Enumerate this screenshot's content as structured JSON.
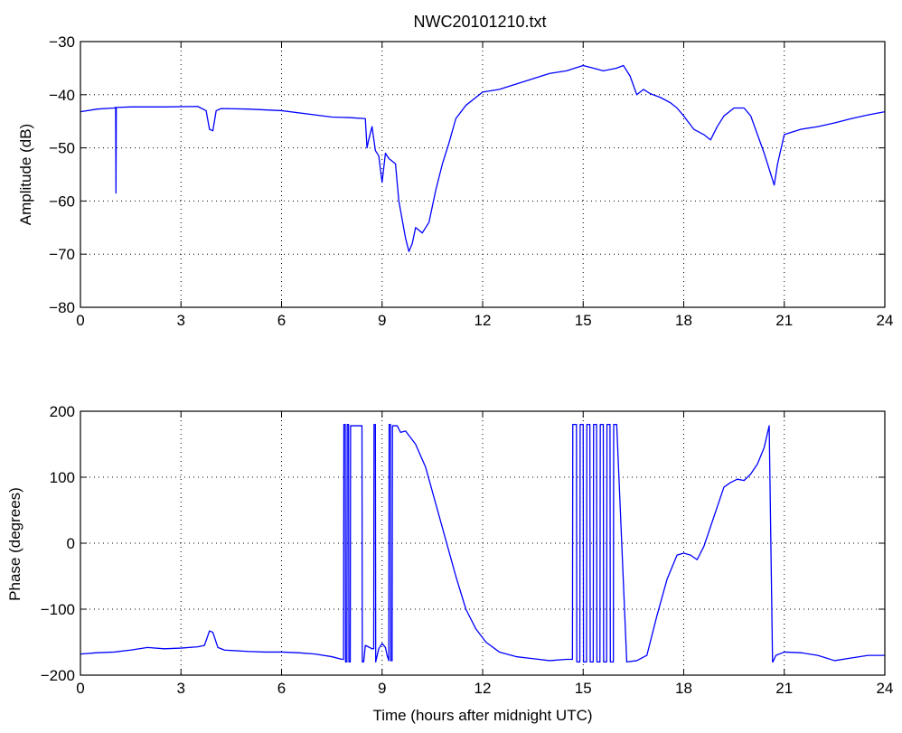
{
  "figure": {
    "title": "NWC20101210.txt"
  },
  "chart_data": [
    {
      "type": "line",
      "title": "NWC20101210.txt",
      "xlabel": "",
      "ylabel": "Amplitude (dB)",
      "xlim": [
        0,
        24
      ],
      "ylim": [
        -80,
        -30
      ],
      "xticks": [
        0,
        3,
        6,
        9,
        12,
        15,
        18,
        21,
        24
      ],
      "yticks": [
        -80,
        -70,
        -60,
        -50,
        -40,
        -30
      ],
      "xtick_labels": [
        "0",
        "3",
        "6",
        "9",
        "12",
        "15",
        "18",
        "21",
        "24"
      ],
      "ytick_labels": [
        "−80",
        "−70",
        "−60",
        "−50",
        "−40",
        "−30"
      ],
      "grid": true,
      "line_color": "#0000ff",
      "series": [
        {
          "x": [
            0,
            0.5,
            1.0,
            1.05,
            1.06,
            1.07,
            1.08,
            1.5,
            2.5,
            3.5,
            3.75,
            3.85,
            3.95,
            4.05,
            4.2,
            5.0,
            6.0,
            7.0,
            7.5,
            8.0,
            8.5,
            8.55,
            8.6,
            8.7,
            8.8,
            8.9,
            9.0,
            9.1,
            9.2,
            9.3,
            9.4,
            9.5,
            9.6,
            9.7,
            9.8,
            9.9,
            10.0,
            10.2,
            10.4,
            10.6,
            10.8,
            11.0,
            11.2,
            11.5,
            12.0,
            12.5,
            13.0,
            13.5,
            14.0,
            14.5,
            15.0,
            15.3,
            15.6,
            16.0,
            16.2,
            16.4,
            16.6,
            16.8,
            17.0,
            17.3,
            17.6,
            17.8,
            18.0,
            18.3,
            18.6,
            18.8,
            19.0,
            19.2,
            19.5,
            19.8,
            20.0,
            20.2,
            20.4,
            20.6,
            20.7,
            20.8,
            21.0,
            21.5,
            22.0,
            22.5,
            23.0,
            23.5,
            24.0
          ],
          "y": [
            -43.2,
            -42.7,
            -42.5,
            -42.4,
            -58.5,
            -42.4,
            -42.4,
            -42.3,
            -42.3,
            -42.2,
            -43.0,
            -46.5,
            -46.8,
            -43.0,
            -42.6,
            -42.7,
            -43.0,
            -43.8,
            -44.2,
            -44.3,
            -44.5,
            -50.0,
            -48.5,
            -46.0,
            -50.5,
            -51.5,
            -56.5,
            -51.0,
            -52.0,
            -52.5,
            -53.0,
            -60.0,
            -63.5,
            -67.0,
            -69.5,
            -68.0,
            -65.0,
            -66.0,
            -64.0,
            -58.0,
            -53.0,
            -49.0,
            -44.5,
            -42.0,
            -39.5,
            -39.0,
            -38.0,
            -37.0,
            -36.0,
            -35.5,
            -34.5,
            -35.0,
            -35.5,
            -35.0,
            -34.5,
            -36.5,
            -40.0,
            -39.0,
            -39.8,
            -40.5,
            -41.5,
            -42.5,
            -44.0,
            -46.5,
            -47.5,
            -48.5,
            -46.0,
            -44.0,
            -42.5,
            -42.5,
            -44.0,
            -47.5,
            -51.0,
            -55.0,
            -57.0,
            -53.0,
            -47.5,
            -46.5,
            -46.0,
            -45.3,
            -44.5,
            -43.8,
            -43.2
          ]
        }
      ]
    },
    {
      "type": "line",
      "title": "",
      "xlabel": "Time (hours after midnight UTC)",
      "ylabel": "Phase (degrees)",
      "xlim": [
        0,
        24
      ],
      "ylim": [
        -200,
        200
      ],
      "xticks": [
        0,
        3,
        6,
        9,
        12,
        15,
        18,
        21,
        24
      ],
      "yticks": [
        -200,
        -100,
        0,
        100,
        200
      ],
      "xtick_labels": [
        "0",
        "3",
        "6",
        "9",
        "12",
        "15",
        "18",
        "21",
        "24"
      ],
      "ytick_labels": [
        "−200",
        "−100",
        "0",
        "100",
        "200"
      ],
      "grid": true,
      "line_color": "#0000ff",
      "series": [
        {
          "x": [
            0,
            0.5,
            1.0,
            1.5,
            2.0,
            2.5,
            3.0,
            3.5,
            3.7,
            3.85,
            3.95,
            4.1,
            4.3,
            5.0,
            5.5,
            6.0,
            6.5,
            7.0,
            7.5,
            7.8,
            7.85,
            7.86,
            7.9,
            7.91,
            7.95,
            7.96,
            8.0,
            8.01,
            8.05,
            8.06,
            8.4,
            8.41,
            8.45,
            8.5,
            8.55,
            8.7,
            8.75,
            8.76,
            8.8,
            8.81,
            8.9,
            9.0,
            9.1,
            9.15,
            9.2,
            9.21,
            9.25,
            9.26,
            9.3,
            9.31,
            9.45,
            9.55,
            9.7,
            10.0,
            10.3,
            10.6,
            10.9,
            11.2,
            11.5,
            11.8,
            12.1,
            12.5,
            13.0,
            13.5,
            14.0,
            14.5,
            14.68,
            14.69,
            14.8,
            14.81,
            14.9,
            14.91,
            15.0,
            15.01,
            15.1,
            15.11,
            15.2,
            15.21,
            15.3,
            15.31,
            15.4,
            15.41,
            15.5,
            15.51,
            15.6,
            15.61,
            15.7,
            15.71,
            15.8,
            15.81,
            15.9,
            15.91,
            16.0,
            16.3,
            16.6,
            16.9,
            17.2,
            17.5,
            17.8,
            18.0,
            18.2,
            18.4,
            18.6,
            18.8,
            19.0,
            19.2,
            19.4,
            19.6,
            19.8,
            20.0,
            20.2,
            20.4,
            20.55,
            20.65,
            20.66,
            20.75,
            21.0,
            21.5,
            22.0,
            22.5,
            23.0,
            23.5,
            24.0
          ],
          "y": [
            -168,
            -166,
            -165,
            -162,
            -158,
            -160,
            -159,
            -157,
            -155,
            -133,
            -135,
            -158,
            -162,
            -164,
            -165,
            -165,
            -166,
            -168,
            -172,
            -176,
            -176,
            180,
            180,
            -180,
            -180,
            180,
            180,
            -180,
            -180,
            178,
            178,
            -180,
            -180,
            -155,
            -156,
            -160,
            -160,
            180,
            180,
            -180,
            -160,
            -152,
            -158,
            -170,
            -178,
            180,
            180,
            -178,
            -178,
            178,
            178,
            168,
            170,
            150,
            115,
            60,
            5,
            -50,
            -100,
            -130,
            -150,
            -165,
            -172,
            -175,
            -178,
            -176,
            -176,
            180,
            180,
            -180,
            -180,
            180,
            180,
            -180,
            -180,
            180,
            180,
            -180,
            -180,
            180,
            180,
            -180,
            -180,
            180,
            180,
            -180,
            -180,
            180,
            180,
            -180,
            -180,
            180,
            180,
            -180,
            -178,
            -170,
            -110,
            -55,
            -18,
            -15,
            -18,
            -25,
            -5,
            25,
            55,
            85,
            92,
            97,
            95,
            105,
            120,
            145,
            178,
            -180,
            -180,
            -170,
            -165,
            -166,
            -170,
            -178,
            -174,
            -170,
            -170
          ]
        }
      ]
    }
  ]
}
